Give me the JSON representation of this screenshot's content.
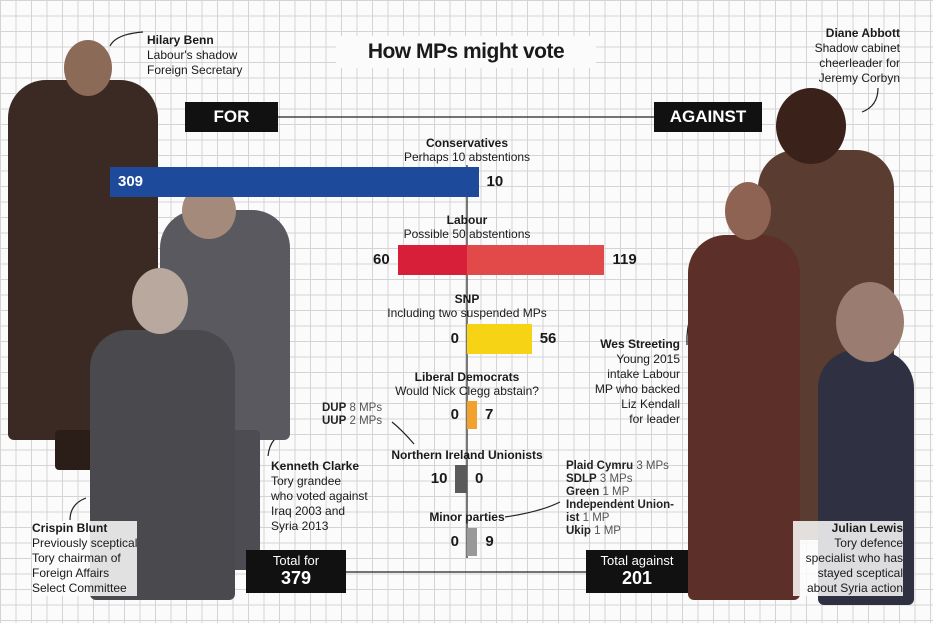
{
  "title": "How MPs might vote",
  "for_label": "FOR",
  "against_label": "AGAINST",
  "people": {
    "benn": {
      "name": "Hilary Benn",
      "desc": [
        "Labour's shadow",
        "Foreign Secretary"
      ]
    },
    "abbott": {
      "name": "Diane Abbott",
      "desc": [
        "Shadow cabinet",
        "cheerleader for",
        "Jeremy Corbyn"
      ]
    },
    "streeting": {
      "name": "Wes Streeting",
      "desc": [
        "Young 2015",
        "intake Labour",
        "MP who backed",
        "Liz Kendall",
        "for leader"
      ]
    },
    "clarke": {
      "name": "Kenneth Clarke",
      "desc": [
        "Tory grandee",
        "who voted against",
        "Iraq 2003 and",
        "Syria 2013"
      ]
    },
    "blunt": {
      "name": "Crispin Blunt",
      "desc": [
        "Previously sceptical",
        "Tory chairman of",
        "Foreign Affairs",
        "Select Committee"
      ]
    },
    "lewis": {
      "name": "Julian Lewis",
      "desc": [
        "Tory defence",
        "specialist who has",
        "stayed sceptical",
        "about Syria action"
      ]
    }
  },
  "ni_note": [
    {
      "party": "DUP",
      "mps": "8 MPs"
    },
    {
      "party": "UUP",
      "mps": "2 MPs"
    }
  ],
  "minor_note": [
    {
      "party": "Plaid Cymru",
      "mps": "3 MPs"
    },
    {
      "party": "SDLP",
      "mps": "3 MPs"
    },
    {
      "party": "Green",
      "mps": "1 MP"
    },
    {
      "party": "Independent Union-",
      "mps": ""
    },
    {
      "party": "ist",
      "mps": "1 MP"
    },
    {
      "party": "Ukip",
      "mps": "1 MP"
    }
  ],
  "totals": {
    "for_label": "Total for",
    "for_value": "379",
    "against_label": "Total against",
    "against_value": "201"
  },
  "colors": {
    "conservatives": "#1d4a9a",
    "labour_for": "#d81f3a",
    "labour_against": "#e24a4a",
    "snp": "#f7d315",
    "libdem": "#f2a22c",
    "ni": "#5a5a5a",
    "minor": "#999999"
  },
  "chart_data": {
    "type": "bar",
    "title": "How MPs might vote",
    "orientation": "horizontal-diverging",
    "categories": [
      "Conservatives",
      "Labour",
      "SNP",
      "Liberal Democrats",
      "Northern Ireland Unionists",
      "Minor parties"
    ],
    "notes": [
      "Perhaps 10 abstentions",
      "Possible 50 abstentions",
      "Including two suspended MPs",
      "Would Nick Clegg abstain?",
      "",
      ""
    ],
    "series": [
      {
        "name": "FOR",
        "values": [
          309,
          60,
          0,
          0,
          10,
          0
        ]
      },
      {
        "name": "AGAINST",
        "values": [
          10,
          119,
          56,
          7,
          0,
          9
        ]
      }
    ],
    "totals": {
      "for": 379,
      "against": 201
    },
    "grid": true
  }
}
